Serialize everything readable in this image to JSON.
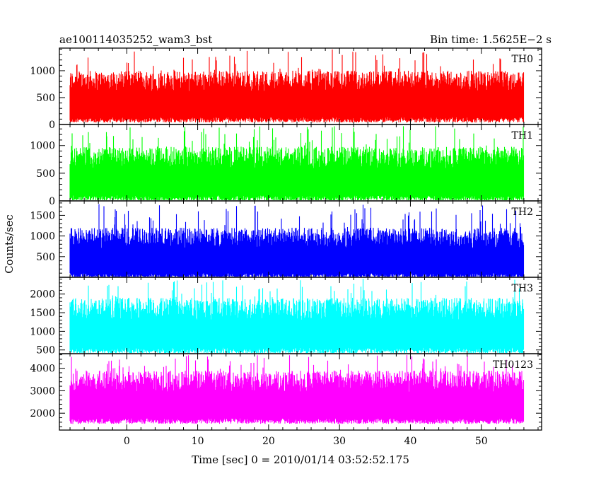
{
  "header": {
    "title": "ae100114035252_wam3_bst",
    "bin_time": "Bin time: 1.5625E−2 s"
  },
  "axes": {
    "xlabel": "Time [sec] 0 = 2010/01/14 03:52:52.175",
    "ylabel": "Counts/sec"
  },
  "chart_data": {
    "type": "line",
    "title": "ae100114035252_wam3_bst",
    "subtitle": "Bin time: 1.5625E−2 s",
    "xlabel": "Time [sec] 0 = 2010/01/14 03:52:52.175",
    "ylabel": "Counts/sec",
    "xlim": [
      -9.5,
      58.5
    ],
    "x_ticks": [
      0,
      10,
      20,
      30,
      40,
      50
    ],
    "data_x_range": [
      -8,
      56
    ],
    "bin_time": 0.015625,
    "grid": false,
    "series": [
      {
        "name": "TH0",
        "color": "#ff0000",
        "ylim": [
          0,
          1420
        ],
        "y_ticks": [
          0,
          500,
          1000
        ],
        "baseline": 140,
        "typical_peak": 1000,
        "max_peak": 1400
      },
      {
        "name": "TH1",
        "color": "#00ff00",
        "ylim": [
          0,
          1380
        ],
        "y_ticks": [
          0,
          500,
          1000
        ],
        "baseline": 100,
        "typical_peak": 980,
        "max_peak": 1360
      },
      {
        "name": "TH2",
        "color": "#0000ff",
        "ylim": [
          0,
          1850
        ],
        "y_ticks": [
          500,
          1000,
          1500
        ],
        "baseline": 100,
        "typical_peak": 1200,
        "max_peak": 1780
      },
      {
        "name": "TH3",
        "color": "#00ffff",
        "ylim": [
          400,
          2450
        ],
        "y_ticks": [
          500,
          1000,
          1500,
          2000
        ],
        "baseline": 560,
        "typical_peak": 1900,
        "max_peak": 2420
      },
      {
        "name": "TH0123",
        "color": "#ff00ff",
        "ylim": [
          1250,
          4650
        ],
        "y_ticks": [
          2000,
          3000,
          4000
        ],
        "baseline": 1780,
        "typical_peak": 3900,
        "max_peak": 4600
      }
    ]
  }
}
